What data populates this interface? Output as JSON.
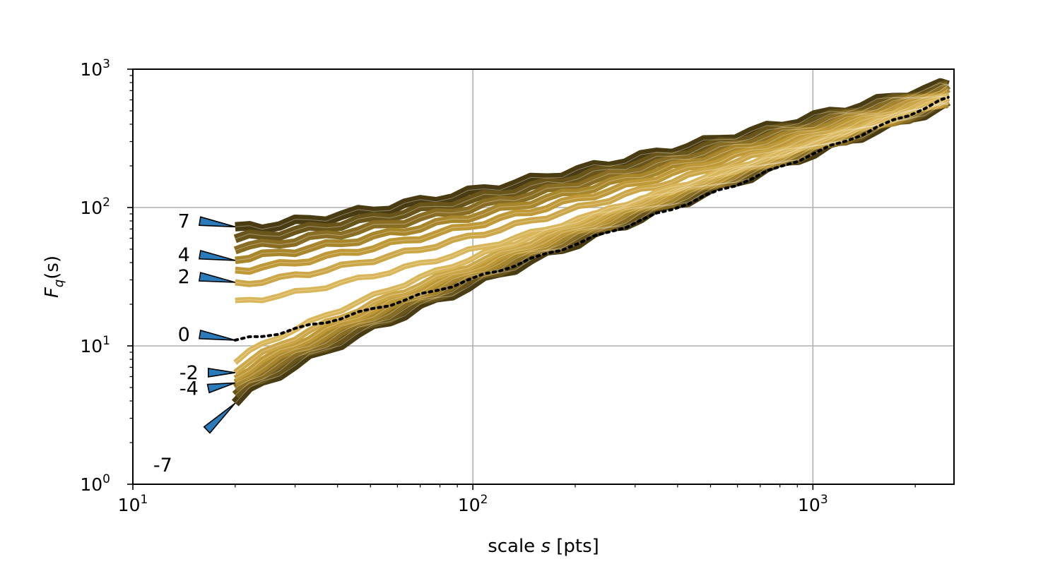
{
  "chart_data": {
    "type": "line",
    "scale": {
      "x": "log",
      "y": "log"
    },
    "xlim": [
      10,
      2600
    ],
    "ylim": [
      1,
      1000
    ],
    "grid": true,
    "xlabel": {
      "prefix": "scale ",
      "var": "s",
      "suffix": " [pts]"
    },
    "ylabel": {
      "base": "F",
      "sub": "q",
      "arg": "(s)"
    },
    "x_ticks": [
      {
        "value": 10,
        "base": "10",
        "exp": "1"
      },
      {
        "value": 100,
        "base": "10",
        "exp": "2"
      },
      {
        "value": 1000,
        "base": "10",
        "exp": "3"
      }
    ],
    "y_ticks": [
      {
        "value": 1,
        "base": "10",
        "exp": "0"
      },
      {
        "value": 10,
        "base": "10",
        "exp": "1"
      },
      {
        "value": 100,
        "base": "10",
        "exp": "2"
      },
      {
        "value": 1000,
        "base": "10",
        "exp": "3"
      }
    ],
    "x": [
      20,
      22,
      24,
      27,
      30,
      33,
      37,
      41,
      46,
      51,
      57,
      63,
      70,
      78,
      87,
      97,
      108,
      120,
      133,
      148,
      165,
      183,
      204,
      227,
      252,
      281,
      312,
      347,
      386,
      430,
      478,
      532,
      592,
      658,
      732,
      815,
      907,
      1009,
      1123,
      1249,
      1390,
      1547,
      1721,
      1915,
      2131,
      2371,
      2500
    ],
    "q_values": [
      -7,
      -6,
      -5,
      -4,
      -3,
      -2,
      -1,
      0,
      1,
      2,
      3,
      4,
      5,
      6,
      7
    ],
    "q_min_value_at_start": 4.0,
    "q_max_value_at_start": 70,
    "q_min_value_at_end": 560,
    "q_max_value_at_end": 780,
    "q0_value_at_start": 11.0,
    "q0_value_at_end": 620,
    "colors": {
      "light": "#e6c46a",
      "mid": "#b8922f",
      "dark": "#4a3c12",
      "arrow": "#2b7bba"
    },
    "annotations": [
      {
        "text": "7",
        "q": 7
      },
      {
        "text": "4",
        "q": 4
      },
      {
        "text": "2",
        "q": 2
      },
      {
        "text": "0",
        "q": 0
      },
      {
        "text": "-2",
        "q": -2
      },
      {
        "text": "-4",
        "q": -4
      },
      {
        "text": "-7",
        "q": -7
      }
    ]
  }
}
